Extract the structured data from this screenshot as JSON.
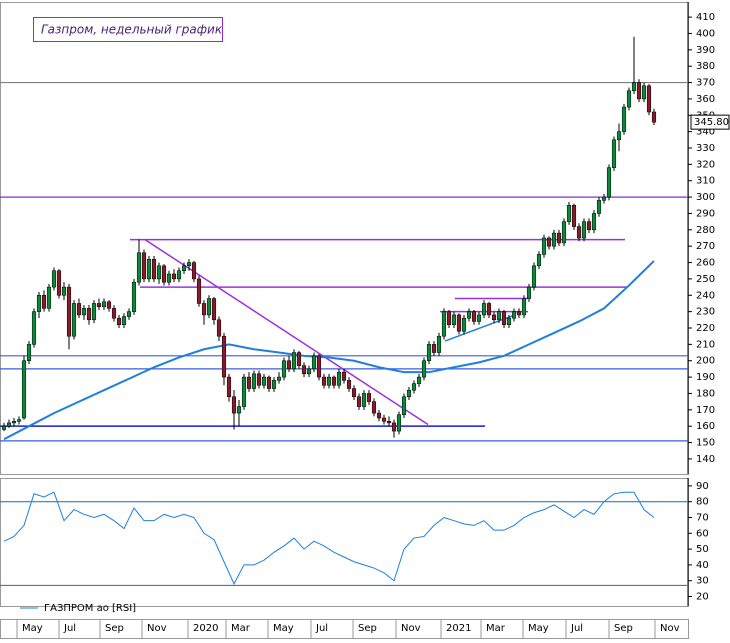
{
  "chart_data": [
    {
      "type": "candlestick",
      "title": "Газпром, недельный график",
      "xlim": [
        -0.8,
        136.8
      ],
      "ylim": [
        132,
        418
      ],
      "yticks": [
        140,
        150,
        160,
        170,
        180,
        190,
        200,
        210,
        220,
        230,
        240,
        250,
        260,
        270,
        280,
        290,
        300,
        310,
        320,
        330,
        340,
        350,
        360,
        370,
        380,
        390,
        400,
        410
      ],
      "xticks": [
        {
          "value": 2.6,
          "label": "May"
        },
        {
          "value": 11,
          "label": "Jul"
        },
        {
          "value": 19.2,
          "label": "Sep"
        },
        {
          "value": 27.6,
          "label": "Nov"
        },
        {
          "value": 36.8,
          "label": "2020"
        },
        {
          "value": 44.4,
          "label": "Mar"
        },
        {
          "value": 52.8,
          "label": "May"
        },
        {
          "value": 61.4,
          "label": "Jul"
        },
        {
          "value": 69.8,
          "label": "Sep"
        },
        {
          "value": 78.4,
          "label": "Nov"
        },
        {
          "value": 87.4,
          "label": "2021"
        },
        {
          "value": 95.4,
          "label": "Mar"
        },
        {
          "value": 103.8,
          "label": "May"
        },
        {
          "value": 112.4,
          "label": "Jul"
        },
        {
          "value": 121,
          "label": "Sep"
        },
        {
          "value": 130.2,
          "label": "Nov"
        }
      ],
      "up_color": "#0a8a3a",
      "down_color": "#8b1a2b",
      "ohlc": [
        [
          158,
          162,
          157,
          160
        ],
        [
          160,
          164,
          159,
          162
        ],
        [
          162,
          165,
          160,
          163
        ],
        [
          163,
          166,
          161,
          164
        ],
        [
          165,
          203,
          164,
          200
        ],
        [
          200,
          212,
          198,
          210
        ],
        [
          210,
          232,
          208,
          230
        ],
        [
          230,
          242,
          226,
          240
        ],
        [
          240,
          243,
          230,
          232
        ],
        [
          232,
          247,
          230,
          245
        ],
        [
          245,
          257,
          243,
          255
        ],
        [
          255,
          256,
          238,
          240
        ],
        [
          240,
          248,
          237,
          245
        ],
        [
          245,
          247,
          207,
          215
        ],
        [
          215,
          237,
          213,
          235
        ],
        [
          235,
          238,
          226,
          228
        ],
        [
          228,
          234,
          225,
          232
        ],
        [
          232,
          234,
          222,
          225
        ],
        [
          225,
          237,
          223,
          235
        ],
        [
          235,
          238,
          231,
          233
        ],
        [
          233,
          238,
          231,
          236
        ],
        [
          236,
          237,
          230,
          232
        ],
        [
          232,
          234,
          224,
          226
        ],
        [
          226,
          228,
          220,
          222
        ],
        [
          222,
          229,
          220,
          227
        ],
        [
          227,
          232,
          225,
          230
        ],
        [
          230,
          250,
          228,
          248
        ],
        [
          248,
          274,
          246,
          266
        ],
        [
          266,
          268,
          248,
          250
        ],
        [
          250,
          264,
          248,
          262
        ],
        [
          262,
          264,
          248,
          250
        ],
        [
          250,
          260,
          247,
          258
        ],
        [
          258,
          259,
          246,
          248
        ],
        [
          248,
          255,
          246,
          253
        ],
        [
          253,
          256,
          248,
          250
        ],
        [
          250,
          257,
          248,
          255
        ],
        [
          255,
          260,
          253,
          258
        ],
        [
          258,
          262,
          255,
          260
        ],
        [
          260,
          261,
          248,
          250
        ],
        [
          250,
          252,
          233,
          235
        ],
        [
          235,
          237,
          222,
          228
        ],
        [
          228,
          240,
          226,
          238
        ],
        [
          238,
          239,
          222,
          225
        ],
        [
          225,
          227,
          212,
          215
        ],
        [
          215,
          217,
          185,
          190
        ],
        [
          190,
          192,
          175,
          178
        ],
        [
          178,
          182,
          158,
          168
        ],
        [
          168,
          176,
          160,
          172
        ],
        [
          172,
          192,
          170,
          190
        ],
        [
          190,
          193,
          181,
          183
        ],
        [
          183,
          194,
          181,
          192
        ],
        [
          192,
          194,
          183,
          185
        ],
        [
          185,
          192,
          183,
          190
        ],
        [
          190,
          191,
          181,
          183
        ],
        [
          183,
          190,
          181,
          188
        ],
        [
          188,
          193,
          186,
          190
        ],
        [
          190,
          202,
          188,
          200
        ],
        [
          200,
          203,
          193,
          195
        ],
        [
          195,
          207,
          193,
          205
        ],
        [
          205,
          206,
          195,
          197
        ],
        [
          197,
          199,
          190,
          192
        ],
        [
          192,
          197,
          190,
          195
        ],
        [
          195,
          205,
          193,
          203
        ],
        [
          203,
          204,
          188,
          190
        ],
        [
          190,
          192,
          183,
          185
        ],
        [
          185,
          192,
          183,
          190
        ],
        [
          190,
          191,
          183,
          185
        ],
        [
          185,
          195,
          183,
          193
        ],
        [
          193,
          195,
          186,
          188
        ],
        [
          188,
          190,
          181,
          183
        ],
        [
          183,
          185,
          176,
          178
        ],
        [
          178,
          180,
          170,
          172
        ],
        [
          172,
          182,
          170,
          180
        ],
        [
          180,
          182,
          173,
          175
        ],
        [
          175,
          177,
          166,
          168
        ],
        [
          168,
          170,
          163,
          165
        ],
        [
          165,
          167,
          161,
          163
        ],
        [
          163,
          166,
          160,
          162
        ],
        [
          162,
          164,
          153,
          157
        ],
        [
          157,
          169,
          155,
          167
        ],
        [
          167,
          180,
          165,
          178
        ],
        [
          178,
          184,
          176,
          182
        ],
        [
          182,
          188,
          180,
          186
        ],
        [
          186,
          192,
          184,
          190
        ],
        [
          190,
          202,
          188,
          200
        ],
        [
          200,
          212,
          198,
          210
        ],
        [
          210,
          212,
          203,
          205
        ],
        [
          205,
          217,
          203,
          215
        ],
        [
          215,
          232,
          213,
          230
        ],
        [
          230,
          231,
          220,
          222
        ],
        [
          222,
          230,
          220,
          228
        ],
        [
          228,
          229,
          216,
          218
        ],
        [
          218,
          228,
          216,
          226
        ],
        [
          226,
          232,
          224,
          230
        ],
        [
          230,
          231,
          222,
          224
        ],
        [
          224,
          230,
          222,
          228
        ],
        [
          228,
          237,
          226,
          235
        ],
        [
          235,
          236,
          226,
          228
        ],
        [
          228,
          230,
          223,
          225
        ],
        [
          225,
          232,
          223,
          230
        ],
        [
          230,
          231,
          220,
          222
        ],
        [
          222,
          228,
          220,
          226
        ],
        [
          226,
          232,
          224,
          230
        ],
        [
          230,
          232,
          226,
          228
        ],
        [
          228,
          240,
          226,
          238
        ],
        [
          238,
          247,
          236,
          245
        ],
        [
          245,
          260,
          243,
          258
        ],
        [
          258,
          267,
          256,
          265
        ],
        [
          265,
          277,
          263,
          275
        ],
        [
          275,
          276,
          268,
          270
        ],
        [
          270,
          280,
          268,
          278
        ],
        [
          278,
          280,
          270,
          272
        ],
        [
          272,
          287,
          270,
          285
        ],
        [
          285,
          297,
          283,
          295
        ],
        [
          295,
          296,
          280,
          282
        ],
        [
          282,
          284,
          273,
          275
        ],
        [
          275,
          287,
          273,
          285
        ],
        [
          285,
          287,
          278,
          280
        ],
        [
          280,
          292,
          278,
          290
        ],
        [
          290,
          300,
          288,
          298
        ],
        [
          298,
          302,
          296,
          300
        ],
        [
          300,
          320,
          298,
          318
        ],
        [
          318,
          337,
          316,
          335
        ],
        [
          335,
          345,
          328,
          340
        ],
        [
          340,
          357,
          338,
          355
        ],
        [
          355,
          367,
          353,
          365
        ],
        [
          365,
          398,
          363,
          370
        ],
        [
          370,
          372,
          358,
          360
        ],
        [
          360,
          370,
          358,
          368
        ],
        [
          368,
          369,
          350,
          352
        ],
        [
          352,
          354,
          344,
          345.8
        ]
      ],
      "moving_average": {
        "color": "#1e7fe0",
        "x": [
          0,
          5,
          10,
          15,
          20,
          25,
          30,
          35,
          40,
          45,
          50,
          55,
          60,
          65,
          70,
          75,
          80,
          85,
          90,
          95,
          100,
          105,
          110,
          115,
          120,
          125,
          130
        ],
        "values": [
          152,
          160,
          168,
          175,
          182,
          189,
          196,
          202,
          207,
          210,
          207,
          205,
          203,
          202,
          200,
          196,
          193,
          193,
          196,
          199,
          203,
          210,
          217,
          224,
          232,
          246,
          261
        ]
      },
      "levels": [
        {
          "value": 370,
          "color": "#808080"
        },
        {
          "value": 300,
          "color": "#8a2be2"
        },
        {
          "value": 203,
          "color": "#3b5bdb"
        },
        {
          "value": 195,
          "color": "#3b5bdb"
        },
        {
          "value": 151,
          "color": "#3b5bdb"
        }
      ],
      "segments": [
        {
          "x": [
            25.2,
            124.2
          ],
          "y": [
            274,
            274
          ],
          "color": "#9b30e0"
        },
        {
          "x": [
            27.2,
            124.8
          ],
          "y": [
            245,
            245
          ],
          "color": "#9b30e0"
        },
        {
          "x": [
            90.2,
            104.8
          ],
          "y": [
            238,
            238
          ],
          "color": "#9b30e0"
        },
        {
          "x": [
            87.2,
            104.8
          ],
          "y": [
            230,
            230
          ],
          "color": "#9b30e0"
        },
        {
          "x": [
            -0.8,
            96.2
          ],
          "y": [
            160,
            160
          ],
          "color": "#1a1ad0"
        },
        {
          "x": [
            28.2,
            84.8
          ],
          "y": [
            274,
            161
          ],
          "color": "#9b30e0"
        },
        {
          "x": [
            88.2,
            102.2
          ],
          "y": [
            212,
            228
          ],
          "color": "#1e7fe0"
        }
      ],
      "last_price": {
        "value": 345.8,
        "label": "345.80"
      }
    },
    {
      "type": "line",
      "ylim": [
        14,
        95
      ],
      "xlim": [
        -0.8,
        136.8
      ],
      "yticks": [
        20,
        30,
        40,
        50,
        60,
        70,
        80,
        90
      ],
      "levels": [
        {
          "value": 80,
          "color": "#1e7fe0"
        },
        {
          "value": 27,
          "color": "#1e7fe0"
        }
      ],
      "series": [
        {
          "name": "ГАЗПРОМ ао [RSI]",
          "color": "#1e7fe0",
          "x": [
            0,
            2,
            4,
            6,
            8,
            10,
            12,
            14,
            16,
            18,
            20,
            22,
            24,
            26,
            28,
            30,
            32,
            34,
            36,
            38,
            40,
            42,
            44,
            46,
            48,
            50,
            52,
            54,
            56,
            58,
            60,
            62,
            64,
            66,
            68,
            70,
            72,
            74,
            76,
            78,
            80,
            82,
            84,
            86,
            88,
            90,
            92,
            94,
            96,
            98,
            100,
            102,
            104,
            106,
            108,
            110,
            112,
            114,
            116,
            118,
            120,
            122,
            124,
            126,
            128,
            130
          ],
          "values": [
            55,
            58,
            65,
            85,
            83,
            86,
            68,
            75,
            72,
            70,
            72,
            68,
            63,
            76,
            68,
            68,
            72,
            70,
            72,
            70,
            60,
            56,
            42,
            28,
            40,
            40,
            43,
            48,
            52,
            57,
            50,
            55,
            52,
            48,
            45,
            42,
            40,
            38,
            35,
            30,
            50,
            57,
            58,
            65,
            70,
            68,
            66,
            65,
            68,
            62,
            62,
            65,
            70,
            73,
            75,
            78,
            74,
            70,
            75,
            72,
            80,
            85,
            86,
            86,
            75,
            70
          ]
        }
      ]
    }
  ]
}
